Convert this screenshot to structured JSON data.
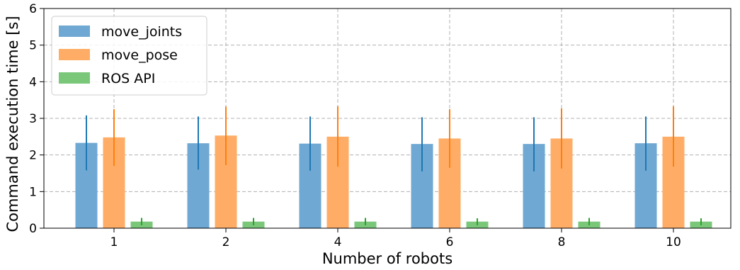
{
  "chart_data": {
    "type": "bar",
    "xlabel": "Number of robots",
    "ylabel": "Command execution time [s]",
    "categories": [
      "1",
      "2",
      "4",
      "6",
      "8",
      "10"
    ],
    "ylim": [
      0,
      6
    ],
    "yticks": [
      "0",
      "1",
      "2",
      "3",
      "4",
      "5",
      "6"
    ],
    "grid": true,
    "legend_position": "top-left",
    "series": [
      {
        "name": "move_joints",
        "color": "#6fa8d3",
        "error_color": "#1f77b4",
        "values": [
          2.33,
          2.32,
          2.31,
          2.3,
          2.3,
          2.32
        ],
        "err_low": [
          1.58,
          1.6,
          1.57,
          1.55,
          1.55,
          1.57
        ],
        "err_high": [
          3.08,
          3.05,
          3.05,
          3.03,
          3.03,
          3.05
        ]
      },
      {
        "name": "move_pose",
        "color": "#ffad66",
        "error_color": "#ff7f0e",
        "values": [
          2.48,
          2.53,
          2.5,
          2.45,
          2.45,
          2.5
        ],
        "err_low": [
          1.7,
          1.72,
          1.68,
          1.65,
          1.63,
          1.68
        ],
        "err_high": [
          3.25,
          3.32,
          3.33,
          3.25,
          3.27,
          3.33
        ]
      },
      {
        "name": "ROS API",
        "color": "#7ac77a",
        "error_color": "#2ca02c",
        "values": [
          0.18,
          0.18,
          0.18,
          0.18,
          0.18,
          0.18
        ],
        "err_low": [
          0.08,
          0.08,
          0.08,
          0.08,
          0.08,
          0.08
        ],
        "err_high": [
          0.28,
          0.28,
          0.28,
          0.27,
          0.28,
          0.27
        ]
      }
    ]
  }
}
